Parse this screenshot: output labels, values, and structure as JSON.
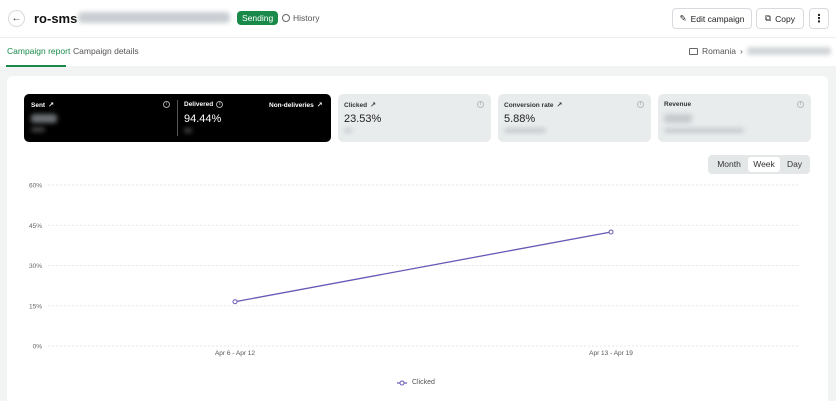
{
  "header": {
    "back_icon": "arrow-left-icon",
    "title": "ro-sms",
    "status": "Sending",
    "history_label": "History",
    "edit_label": "Edit campaign",
    "copy_label": "Copy",
    "more_icon": "kebab-icon"
  },
  "tabs": [
    {
      "label": "Campaign report",
      "active": true
    },
    {
      "label": "Campaign details",
      "active": false
    }
  ],
  "breadcrumb": {
    "country": "Romania",
    "separator": "›"
  },
  "cards": {
    "sent": {
      "label": "Sent"
    },
    "delivered": {
      "label": "Delivered",
      "value": "94.44%"
    },
    "non_deliveries": {
      "label": "Non-deliveries"
    },
    "clicked": {
      "label": "Clicked",
      "value": "23.53%"
    },
    "conversion": {
      "label": "Conversion rate",
      "value": "5.88%"
    },
    "revenue": {
      "label": "Revenue"
    }
  },
  "period_toggle": {
    "options": [
      "Month",
      "Week",
      "Day"
    ],
    "selected": "Week"
  },
  "colors": {
    "accent": "#1a8a4b",
    "series": "#6a56b5"
  },
  "chart_data": {
    "type": "line",
    "categories": [
      "Apr 6 - Apr 12",
      "Apr 13 - Apr 19"
    ],
    "series": [
      {
        "name": "Clicked",
        "values": [
          16.5,
          42.5
        ]
      }
    ],
    "yticks": [
      "0%",
      "15%",
      "30%",
      "45%",
      "60%"
    ],
    "ylim": [
      0,
      60
    ],
    "grid": true,
    "legend": "bottom"
  }
}
